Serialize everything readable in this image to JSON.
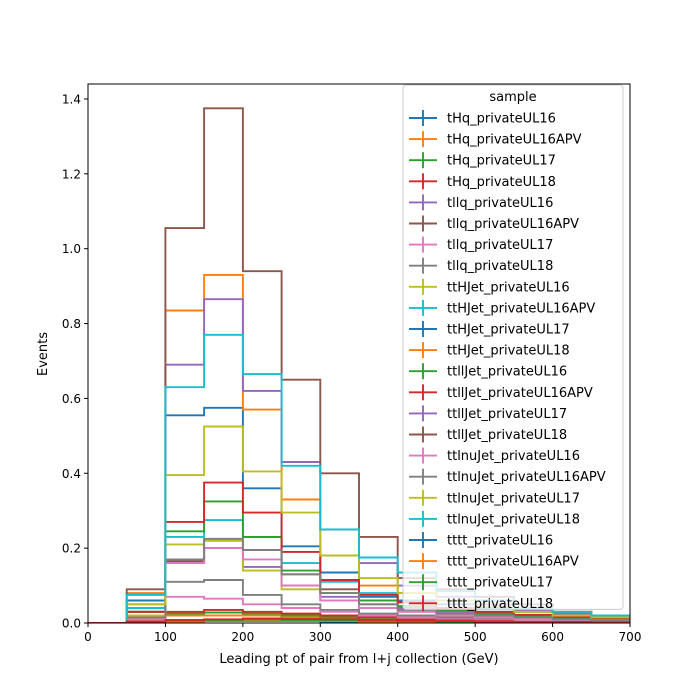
{
  "chart_data": {
    "type": "step-histogram",
    "xlabel": "Leading pt of pair from l+j collection (GeV)",
    "ylabel": "Events",
    "xlim": [
      0,
      700
    ],
    "ylim": [
      0,
      1.44
    ],
    "grid": false,
    "x_ticks": [
      "0",
      "100",
      "200",
      "300",
      "400",
      "500",
      "600",
      "700"
    ],
    "y_ticks": [
      "0.0",
      "0.2",
      "0.4",
      "0.6",
      "0.8",
      "1.0",
      "1.2",
      "1.4"
    ],
    "legend": {
      "title": "sample",
      "placement": "upper-right"
    },
    "bin_edges": [
      0,
      50,
      100,
      150,
      200,
      250,
      300,
      350,
      400,
      450,
      500,
      550,
      600,
      650,
      700
    ],
    "series": [
      {
        "name": "tHq_privateUL16",
        "color": "#1f77b4",
        "values": [
          0,
          0.01,
          0.02,
          0.02,
          0.02,
          0.015,
          0.01,
          0.008,
          0.006,
          0.005,
          0.004,
          0.003,
          0.002,
          0.002
        ]
      },
      {
        "name": "tHq_privateUL16APV",
        "color": "#ff7f0e",
        "values": [
          0,
          0.01,
          0.02,
          0.02,
          0.02,
          0.015,
          0.01,
          0.008,
          0.006,
          0.005,
          0.004,
          0.003,
          0.002,
          0.002
        ]
      },
      {
        "name": "tHq_privateUL17",
        "color": "#2ca02c",
        "values": [
          0,
          0.015,
          0.025,
          0.028,
          0.025,
          0.02,
          0.015,
          0.01,
          0.008,
          0.006,
          0.005,
          0.004,
          0.003,
          0.002
        ]
      },
      {
        "name": "tHq_privateUL18",
        "color": "#d62728",
        "values": [
          0,
          0.02,
          0.03,
          0.035,
          0.03,
          0.025,
          0.02,
          0.015,
          0.01,
          0.008,
          0.006,
          0.005,
          0.004,
          0.003
        ]
      },
      {
        "name": "tllq_privateUL16",
        "color": "#9467bd",
        "values": [
          0,
          0.02,
          0.16,
          0.2,
          0.15,
          0.1,
          0.07,
          0.05,
          0.04,
          0.03,
          0.02,
          0.015,
          0.01,
          0.008
        ]
      },
      {
        "name": "tllq_privateUL16APV",
        "color": "#8c564b",
        "values": [
          0,
          0.03,
          0.165,
          0.22,
          0.195,
          0.13,
          0.09,
          0.06,
          0.045,
          0.035,
          0.025,
          0.018,
          0.012,
          0.01
        ]
      },
      {
        "name": "tllq_privateUL17",
        "color": "#e377c2",
        "values": [
          0,
          0.02,
          0.07,
          0.065,
          0.05,
          0.04,
          0.03,
          0.02,
          0.015,
          0.012,
          0.01,
          0.008,
          0.006,
          0.005
        ]
      },
      {
        "name": "tllq_privateUL18",
        "color": "#7f7f7f",
        "values": [
          0,
          0.03,
          0.11,
          0.115,
          0.075,
          0.05,
          0.035,
          0.025,
          0.02,
          0.015,
          0.012,
          0.01,
          0.008,
          0.006
        ]
      },
      {
        "name": "ttHJet_privateUL16",
        "color": "#bcbd22",
        "values": [
          0,
          0.02,
          0.21,
          0.22,
          0.14,
          0.09,
          0.06,
          0.04,
          0.03,
          0.02,
          0.015,
          0.01,
          0.008,
          0.006
        ]
      },
      {
        "name": "ttHJet_privateUL16APV",
        "color": "#17becf",
        "values": [
          0,
          0.04,
          0.23,
          0.275,
          0.23,
          0.16,
          0.11,
          0.08,
          0.06,
          0.04,
          0.03,
          0.02,
          0.015,
          0.01
        ]
      },
      {
        "name": "ttHJet_privateUL17",
        "color": "#1f77b4",
        "values": [
          0,
          0.06,
          0.555,
          0.575,
          0.36,
          0.205,
          0.135,
          0.07,
          0.06,
          0.05,
          0.04,
          0.03,
          0.02,
          0.015
        ]
      },
      {
        "name": "ttHJet_privateUL18",
        "color": "#ff7f0e",
        "values": [
          0,
          0.08,
          0.835,
          0.93,
          0.57,
          0.33,
          0.18,
          0.1,
          0.08,
          0.06,
          0.05,
          0.04,
          0.03,
          0.02
        ]
      },
      {
        "name": "ttllJet_privateUL16",
        "color": "#2ca02c",
        "values": [
          0,
          0.03,
          0.245,
          0.325,
          0.23,
          0.14,
          0.08,
          0.06,
          0.045,
          0.035,
          0.025,
          0.02,
          0.015,
          0.01
        ]
      },
      {
        "name": "ttllJet_privateUL16APV",
        "color": "#d62728",
        "values": [
          0,
          0.03,
          0.27,
          0.375,
          0.295,
          0.19,
          0.115,
          0.075,
          0.055,
          0.04,
          0.03,
          0.022,
          0.016,
          0.012
        ]
      },
      {
        "name": "ttllJet_privateUL17",
        "color": "#9467bd",
        "values": [
          0,
          0.05,
          0.69,
          0.865,
          0.62,
          0.43,
          0.25,
          0.16,
          0.1,
          0.07,
          0.05,
          0.035,
          0.025,
          0.02
        ]
      },
      {
        "name": "ttllJet_privateUL18",
        "color": "#8c564b",
        "values": [
          0,
          0.09,
          1.055,
          1.375,
          0.94,
          0.65,
          0.4,
          0.23,
          0.12,
          0.09,
          0.07,
          0.05,
          0.03,
          0.02
        ]
      },
      {
        "name": "ttlnuJet_privateUL16",
        "color": "#e377c2",
        "values": [
          0,
          0.01,
          0.16,
          0.2,
          0.17,
          0.1,
          0.06,
          0.04,
          0.03,
          0.02,
          0.015,
          0.01,
          0.008,
          0.006
        ]
      },
      {
        "name": "ttlnuJet_privateUL16APV",
        "color": "#7f7f7f",
        "values": [
          0,
          0.015,
          0.17,
          0.225,
          0.195,
          0.13,
          0.08,
          0.05,
          0.035,
          0.025,
          0.02,
          0.015,
          0.01,
          0.008
        ]
      },
      {
        "name": "ttlnuJet_privateUL17",
        "color": "#bcbd22",
        "values": [
          0,
          0.05,
          0.395,
          0.525,
          0.405,
          0.295,
          0.18,
          0.12,
          0.08,
          0.06,
          0.045,
          0.03,
          0.02,
          0.015
        ]
      },
      {
        "name": "ttlnuJet_privateUL18",
        "color": "#17becf",
        "values": [
          0,
          0.075,
          0.63,
          0.77,
          0.665,
          0.42,
          0.25,
          0.175,
          0.135,
          0.085,
          0.06,
          0.04,
          0.03,
          0.02
        ]
      },
      {
        "name": "tttt_privateUL16",
        "color": "#1f77b4",
        "values": [
          0,
          0.002,
          0.004,
          0.005,
          0.005,
          0.005,
          0.004,
          0.004,
          0.003,
          0.003,
          0.002,
          0.002,
          0.002,
          0.001
        ]
      },
      {
        "name": "tttt_privateUL16APV",
        "color": "#ff7f0e",
        "values": [
          0,
          0.002,
          0.004,
          0.006,
          0.006,
          0.006,
          0.005,
          0.004,
          0.004,
          0.003,
          0.003,
          0.002,
          0.002,
          0.001
        ]
      },
      {
        "name": "tttt_privateUL17",
        "color": "#2ca02c",
        "values": [
          0,
          0.003,
          0.006,
          0.008,
          0.009,
          0.008,
          0.007,
          0.006,
          0.005,
          0.004,
          0.003,
          0.003,
          0.002,
          0.002
        ]
      },
      {
        "name": "tttt_privateUL18",
        "color": "#d62728",
        "values": [
          0,
          0.004,
          0.008,
          0.01,
          0.012,
          0.011,
          0.01,
          0.008,
          0.007,
          0.005,
          0.004,
          0.003,
          0.003,
          0.002
        ]
      }
    ]
  }
}
